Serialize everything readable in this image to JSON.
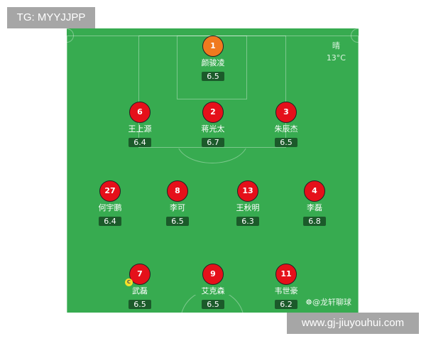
{
  "watermarks": {
    "top_left": "TG: MYYJJPP",
    "bottom_right": "www.gj-jiuyouhui.com"
  },
  "weather": {
    "condition": "晴",
    "temperature": "13°C"
  },
  "credit": "@龙轩聊球",
  "colors": {
    "pitch": "#37ab50",
    "player": "#e5101a",
    "goalkeeper": "#f07a1e",
    "rating_bg": "#1b5a2a",
    "captain": "#f5e02a"
  },
  "players": [
    {
      "number": "1",
      "name": "颜骏凌",
      "rating": "6.5",
      "role": "goalkeeper"
    },
    {
      "number": "6",
      "name": "王上源",
      "rating": "6.4"
    },
    {
      "number": "2",
      "name": "蒋光太",
      "rating": "6.7"
    },
    {
      "number": "3",
      "name": "朱辰杰",
      "rating": "6.5"
    },
    {
      "number": "27",
      "name": "何宇鹏",
      "rating": "6.4"
    },
    {
      "number": "8",
      "name": "李可",
      "rating": "6.5"
    },
    {
      "number": "13",
      "name": "王秋明",
      "rating": "6.3"
    },
    {
      "number": "4",
      "name": "李磊",
      "rating": "6.8"
    },
    {
      "number": "7",
      "name": "武磊",
      "rating": "6.5",
      "captain": "C"
    },
    {
      "number": "9",
      "name": "艾克森",
      "rating": "6.5"
    },
    {
      "number": "11",
      "name": "韦世豪",
      "rating": "6.2"
    }
  ]
}
